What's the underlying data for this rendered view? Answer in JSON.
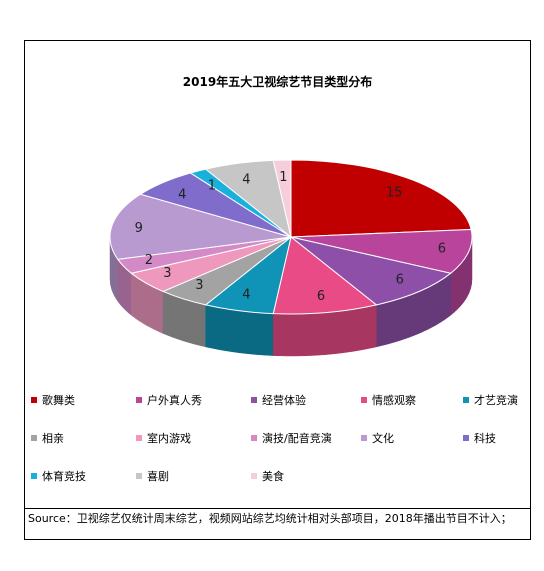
{
  "chart_data": {
    "type": "pie",
    "title": "2019年五大卫视综艺节目类型分布",
    "categories": [
      "歌舞类",
      "户外真人秀",
      "经营体验",
      "情感观察",
      "才艺竞演",
      "相亲",
      "室内游戏",
      "演技/配音竞演",
      "文化",
      "科技",
      "体育竞技",
      "喜剧",
      "美食"
    ],
    "values": [
      15,
      6,
      6,
      6,
      4,
      3,
      3,
      2,
      9,
      4,
      1,
      4,
      1
    ],
    "colors": [
      "#C00000",
      "#B8449B",
      "#8E4FA8",
      "#E84B85",
      "#0F93B6",
      "#A3A3A3",
      "#EE98BE",
      "#D58AC8",
      "#B99AD0",
      "#7F6CCB",
      "#19B1DC",
      "#C6C6C6",
      "#F6CDDA"
    ],
    "legend_position": "bottom",
    "render": "3d"
  },
  "source_note": "Source：卫视综艺仅统计周末综艺，视频网站综艺均统计相对头部项目，2018年播出节目不计入；"
}
